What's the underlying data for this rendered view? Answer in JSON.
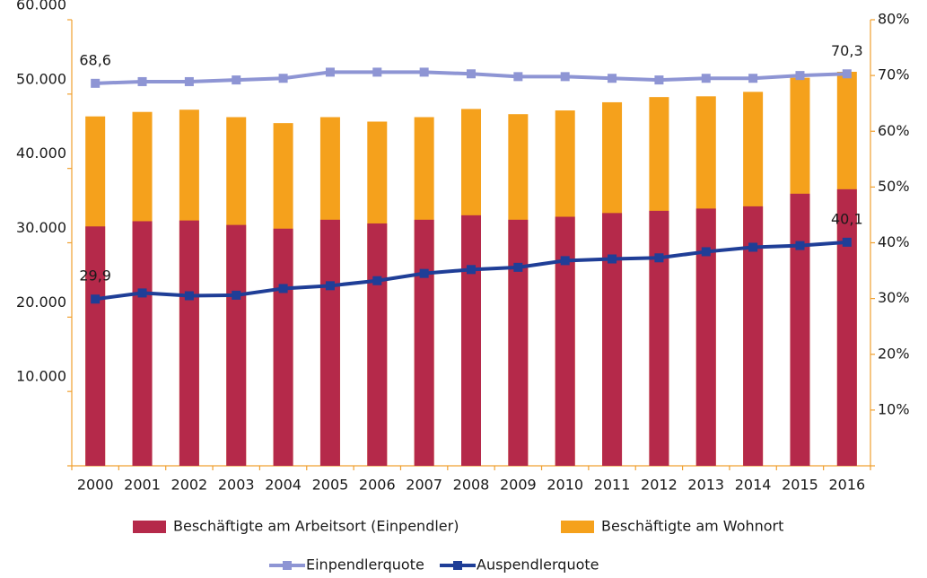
{
  "chart_data": {
    "type": "bar",
    "categories": [
      "2000",
      "2001",
      "2002",
      "2003",
      "2004",
      "2005",
      "2006",
      "2007",
      "2008",
      "2009",
      "2010",
      "2011",
      "2012",
      "2013",
      "2014",
      "2015",
      "2016"
    ],
    "series": [
      {
        "name": "Beschäftigte am Wohnort",
        "type": "bar",
        "color": "#f5a11c",
        "values": [
          47000,
          47600,
          47900,
          46900,
          46100,
          46900,
          46300,
          46900,
          48000,
          47300,
          47800,
          48900,
          49600,
          49700,
          50300,
          52200,
          53000
        ]
      },
      {
        "name": "Beschäftigte am Arbeitsort (Einpendler)",
        "type": "bar",
        "color": "#b5294a",
        "values": [
          32200,
          32900,
          33000,
          32400,
          31900,
          33100,
          32600,
          33100,
          33700,
          33100,
          33500,
          34000,
          34300,
          34600,
          34900,
          36600,
          37200
        ]
      },
      {
        "name": "Einpendlerquote",
        "type": "line",
        "axis": "y2",
        "color": "#8e95d4",
        "values": [
          68.6,
          68.9,
          68.9,
          69.2,
          69.5,
          70.6,
          70.6,
          70.6,
          70.3,
          69.8,
          69.8,
          69.5,
          69.2,
          69.5,
          69.5,
          70.0,
          70.3
        ],
        "value_labels": [
          "68,6",
          null,
          null,
          null,
          null,
          null,
          null,
          null,
          null,
          null,
          null,
          null,
          null,
          null,
          null,
          null,
          "70,3"
        ]
      },
      {
        "name": "Auspendlerquote",
        "type": "line",
        "axis": "y2",
        "color": "#1f3e97",
        "values": [
          29.9,
          31.0,
          30.5,
          30.6,
          31.8,
          32.3,
          33.2,
          34.5,
          35.2,
          35.6,
          36.8,
          37.1,
          37.3,
          38.4,
          39.2,
          39.5,
          40.1
        ],
        "value_labels": [
          "29,9",
          null,
          null,
          null,
          null,
          null,
          null,
          null,
          null,
          null,
          null,
          null,
          null,
          null,
          null,
          null,
          "40,1"
        ]
      }
    ],
    "ylim": [
      0,
      60000
    ],
    "yticks": [
      {
        "value": 10000,
        "label": "10.000"
      },
      {
        "value": 20000,
        "label": "20.000"
      },
      {
        "value": 30000,
        "label": "30.000"
      },
      {
        "value": 40000,
        "label": "40.000"
      },
      {
        "value": 50000,
        "label": "50.000"
      },
      {
        "value": 60000,
        "label": "60.000"
      }
    ],
    "y2lim": [
      0,
      80
    ],
    "y2ticks": [
      {
        "value": 10,
        "label": "10%"
      },
      {
        "value": 20,
        "label": "20%"
      },
      {
        "value": 30,
        "label": "30%"
      },
      {
        "value": 40,
        "label": "40%"
      },
      {
        "value": 50,
        "label": "50%"
      },
      {
        "value": 60,
        "label": "60%"
      },
      {
        "value": 70,
        "label": "70%"
      },
      {
        "value": 80,
        "label": "80%"
      }
    ],
    "grid": false
  }
}
